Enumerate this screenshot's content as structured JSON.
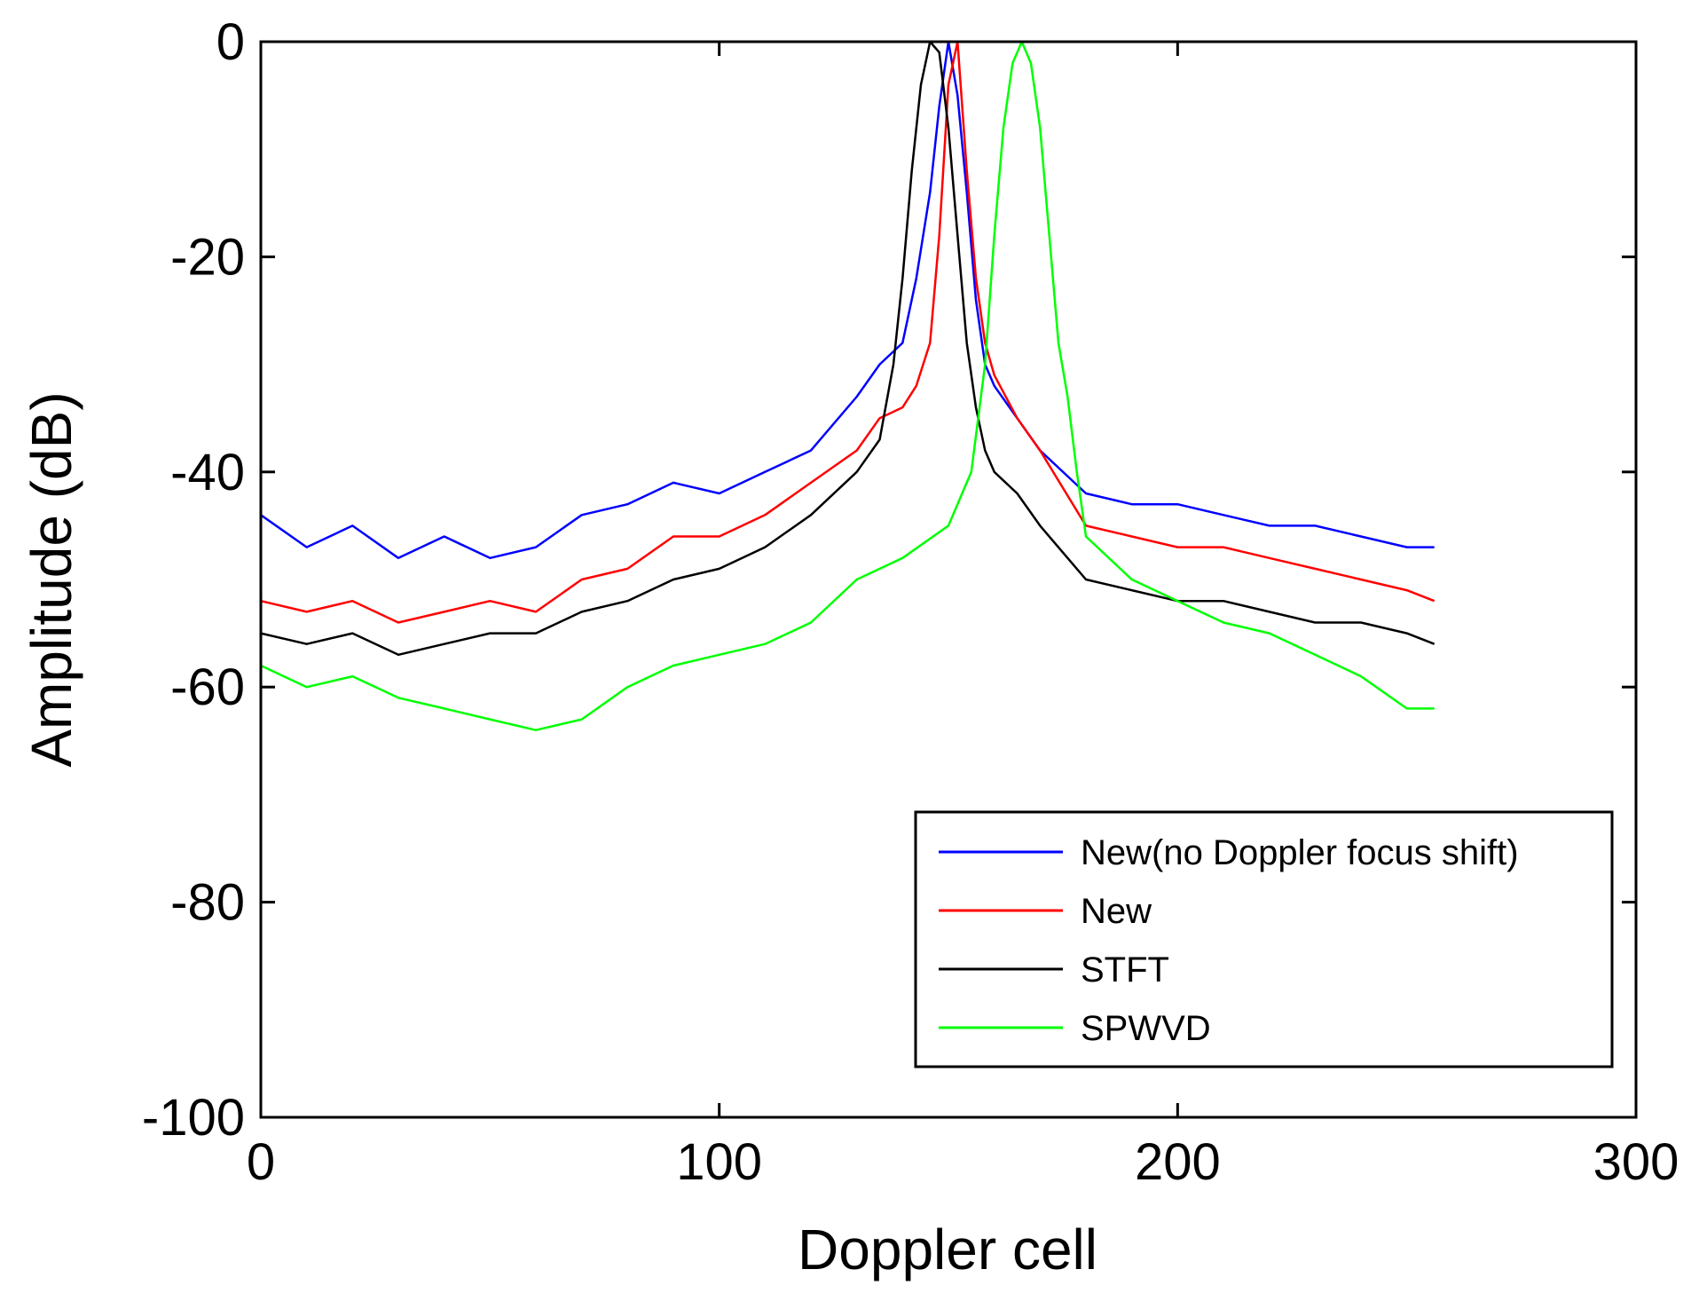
{
  "chart_data": {
    "type": "line",
    "title": "",
    "xlabel": "Doppler cell",
    "ylabel": "Amplitude (dB)",
    "xlim": [
      0,
      300
    ],
    "ylim": [
      -100,
      0
    ],
    "xticks": [
      0,
      100,
      200,
      300
    ],
    "yticks": [
      0,
      -20,
      -40,
      -60,
      -80,
      -100
    ],
    "xtick_labels": [
      "0",
      "100",
      "200",
      "300"
    ],
    "ytick_labels": [
      "0",
      "-20",
      "-40",
      "-60",
      "-80",
      "-100"
    ],
    "grid": false,
    "legend_position": "bottom-right",
    "series": [
      {
        "name": "New(no Doppler focus shift)",
        "color": "#0000ff",
        "x": [
          0,
          10,
          20,
          30,
          40,
          50,
          60,
          70,
          80,
          90,
          100,
          110,
          120,
          130,
          135,
          140,
          143,
          146,
          148,
          150,
          152,
          154,
          156,
          158,
          160,
          165,
          170,
          180,
          190,
          200,
          210,
          220,
          230,
          240,
          250,
          256
        ],
        "y": [
          -44,
          -47,
          -45,
          -48,
          -46,
          -48,
          -47,
          -44,
          -43,
          -41,
          -42,
          -40,
          -38,
          -33,
          -30,
          -28,
          -22,
          -14,
          -6,
          0,
          -5,
          -14,
          -24,
          -30,
          -32,
          -35,
          -38,
          -42,
          -43,
          -43,
          -44,
          -45,
          -45,
          -46,
          -47,
          -47
        ]
      },
      {
        "name": "New",
        "color": "#ff0000",
        "x": [
          0,
          10,
          20,
          30,
          40,
          50,
          60,
          70,
          80,
          90,
          100,
          110,
          120,
          130,
          135,
          140,
          143,
          146,
          148,
          150,
          152,
          154,
          156,
          158,
          160,
          165,
          170,
          180,
          190,
          200,
          210,
          220,
          230,
          240,
          250,
          256
        ],
        "y": [
          -52,
          -53,
          -52,
          -54,
          -53,
          -52,
          -53,
          -50,
          -49,
          -46,
          -46,
          -44,
          -41,
          -38,
          -35,
          -34,
          -32,
          -28,
          -18,
          -4,
          0,
          -12,
          -22,
          -28,
          -31,
          -35,
          -38,
          -45,
          -46,
          -47,
          -47,
          -48,
          -49,
          -50,
          -51,
          -52
        ]
      },
      {
        "name": "STFT",
        "color": "#000000",
        "x": [
          0,
          10,
          20,
          30,
          40,
          50,
          60,
          70,
          80,
          90,
          100,
          110,
          120,
          130,
          135,
          138,
          140,
          142,
          144,
          146,
          148,
          150,
          152,
          154,
          156,
          158,
          160,
          165,
          170,
          180,
          190,
          200,
          210,
          220,
          230,
          240,
          250,
          256
        ],
        "y": [
          -55,
          -56,
          -55,
          -57,
          -56,
          -55,
          -55,
          -53,
          -52,
          -50,
          -49,
          -47,
          -44,
          -40,
          -37,
          -30,
          -22,
          -12,
          -4,
          0,
          -1,
          -8,
          -18,
          -28,
          -34,
          -38,
          -40,
          -42,
          -45,
          -50,
          -51,
          -52,
          -52,
          -53,
          -54,
          -54,
          -55,
          -56
        ]
      },
      {
        "name": "SPWVD",
        "color": "#00ff00",
        "x": [
          0,
          10,
          20,
          30,
          40,
          50,
          60,
          70,
          80,
          90,
          100,
          110,
          120,
          130,
          140,
          150,
          155,
          158,
          160,
          162,
          164,
          166,
          168,
          170,
          172,
          174,
          176,
          178,
          180,
          190,
          200,
          210,
          220,
          230,
          240,
          250,
          256
        ],
        "y": [
          -58,
          -60,
          -59,
          -61,
          -62,
          -63,
          -64,
          -63,
          -60,
          -58,
          -57,
          -56,
          -54,
          -50,
          -48,
          -45,
          -40,
          -30,
          -18,
          -8,
          -2,
          0,
          -2,
          -8,
          -18,
          -28,
          -33,
          -40,
          -46,
          -50,
          -52,
          -54,
          -55,
          -57,
          -59,
          -62,
          -62
        ]
      }
    ]
  }
}
